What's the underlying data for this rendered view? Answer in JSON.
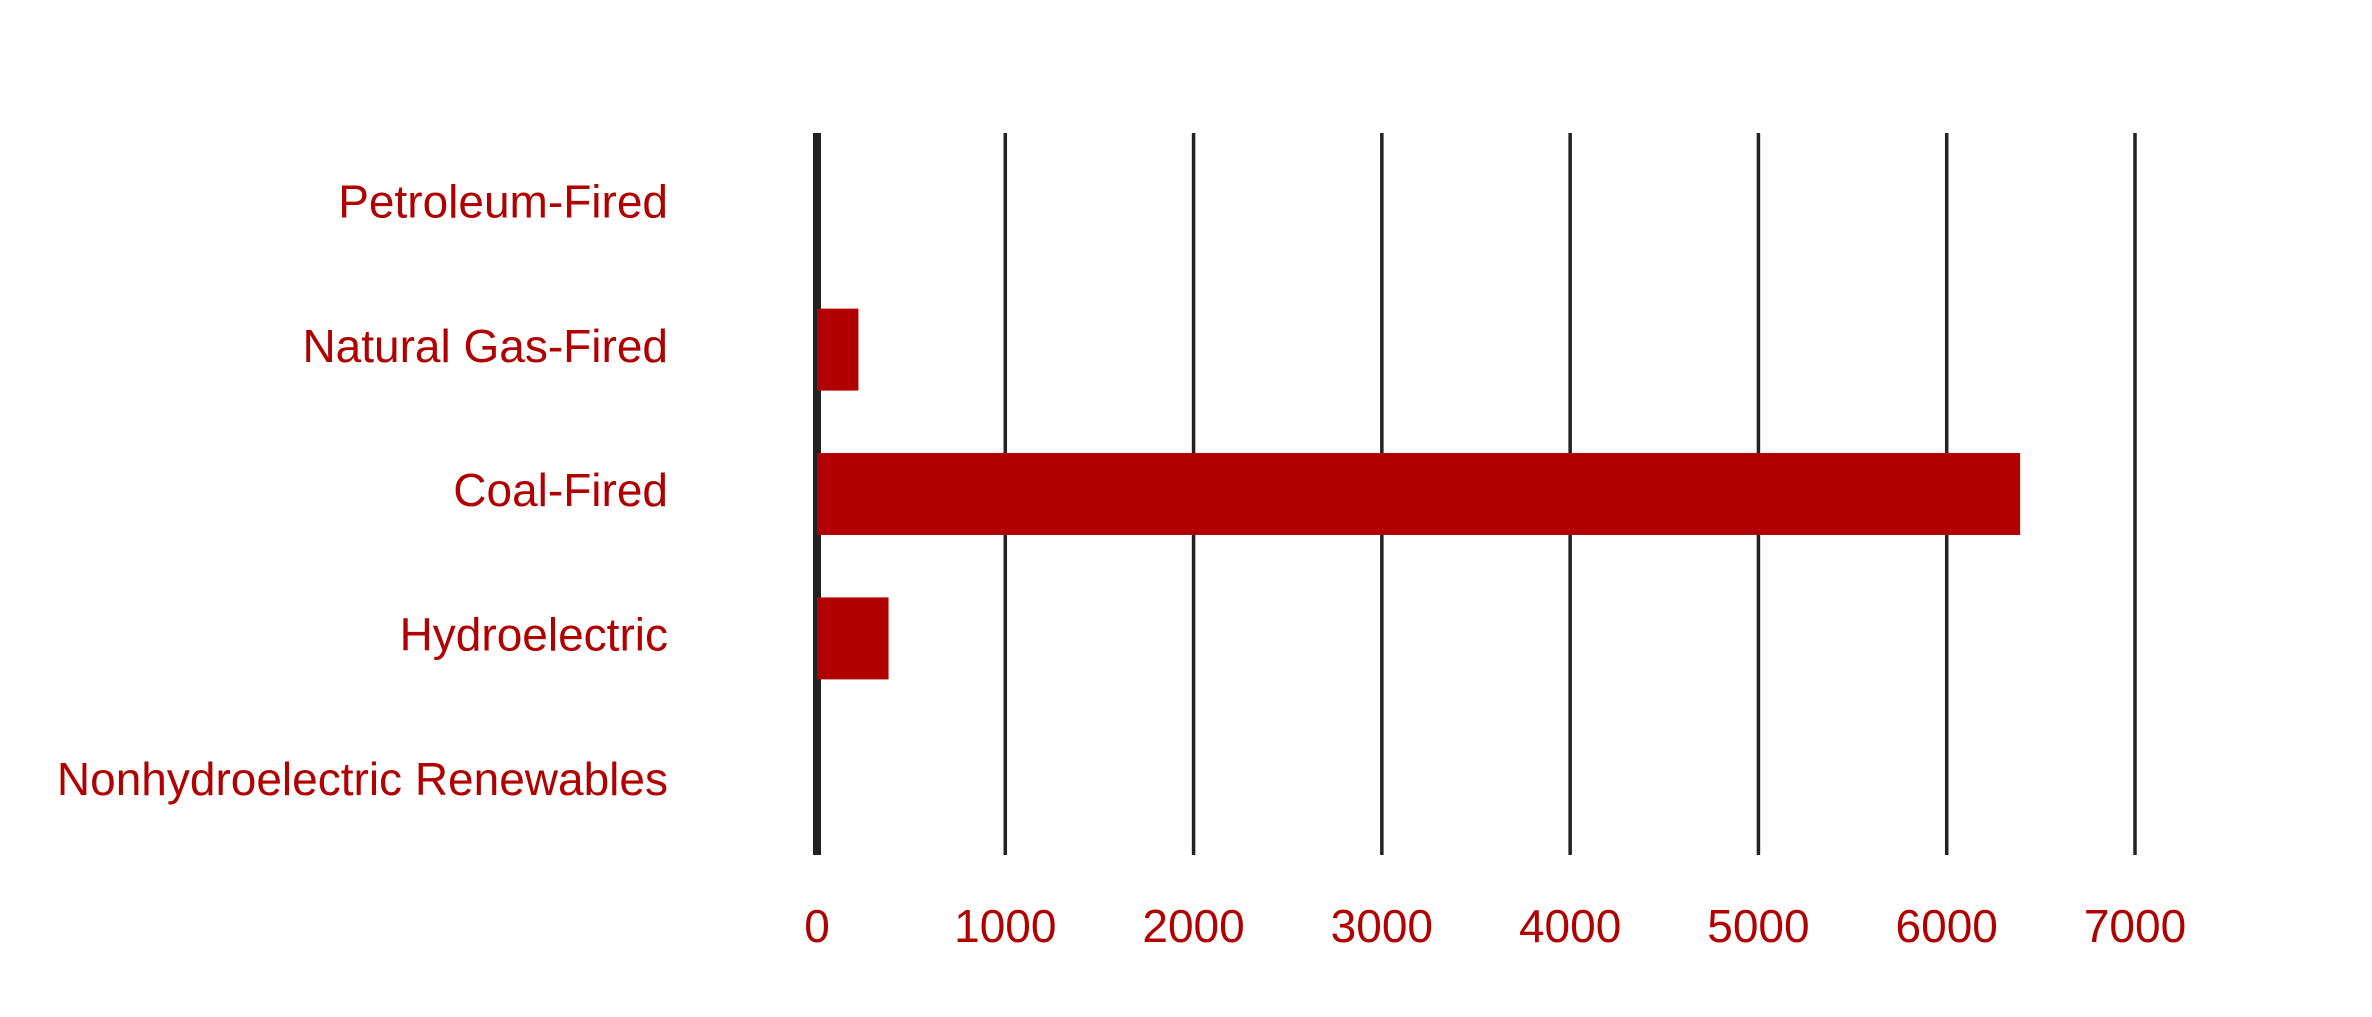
{
  "chart_data": {
    "type": "bar",
    "orientation": "horizontal",
    "title": "",
    "xlabel": "",
    "ylabel": "",
    "categories": [
      "Petroleum-Fired",
      "Natural Gas-Fired",
      "Coal-Fired",
      "Hydroelectric",
      "Nonhydroelectric Renewables"
    ],
    "values": [
      0,
      220,
      6390,
      380,
      0
    ],
    "xlim": [
      0,
      7000
    ],
    "ticks": [
      0,
      1000,
      2000,
      3000,
      4000,
      5000,
      6000,
      7000
    ],
    "tick_labels": [
      "0",
      "1000",
      "2000",
      "3000",
      "4000",
      "5000",
      "6000",
      "7000"
    ],
    "grid": true,
    "legend": "none",
    "colors": {
      "bar": "#b10000",
      "text": "#b10000",
      "grid": "#222222"
    }
  }
}
